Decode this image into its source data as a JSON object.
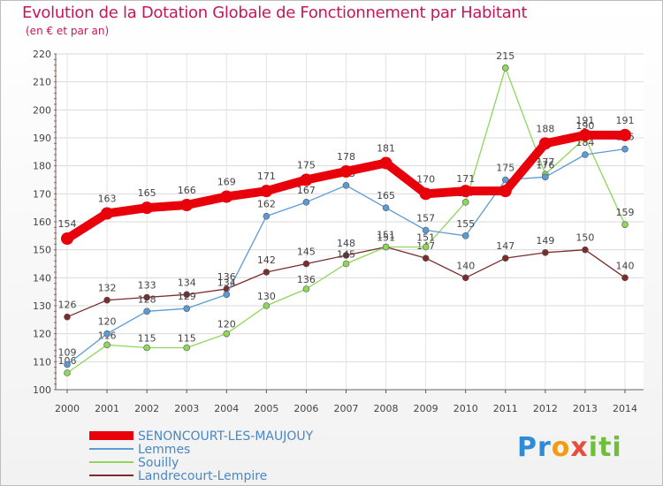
{
  "title": "Evolution de la Dotation Globale de Fonctionnement par Habitant",
  "subtitle": "(en € et par an)",
  "logo": {
    "parts": [
      "Pr",
      "o",
      "x",
      "iti"
    ]
  },
  "chart_data": {
    "type": "line",
    "x": [
      2000,
      2001,
      2002,
      2003,
      2004,
      2005,
      2006,
      2007,
      2008,
      2009,
      2010,
      2011,
      2012,
      2013,
      2014
    ],
    "ylim": [
      100,
      220
    ],
    "yticks": [
      100,
      110,
      120,
      130,
      140,
      150,
      160,
      170,
      180,
      190,
      200,
      210,
      220
    ],
    "grid": true,
    "legend_position": "bottom-left",
    "series": [
      {
        "name": "SENONCOURT-LES-MAUJOUY",
        "color": "#e8000b",
        "values": [
          154,
          163,
          165,
          166,
          169,
          171,
          175,
          178,
          181,
          170,
          171,
          171,
          188,
          191,
          191
        ],
        "labels": [
          "154",
          "163",
          "165",
          "166",
          "169",
          "171",
          "175",
          "178",
          "181",
          "170",
          "171",
          "",
          "188",
          "191",
          "191"
        ]
      },
      {
        "name": "Lemmes",
        "color": "#5b9bd5",
        "values": [
          109,
          120,
          128,
          129,
          134,
          162,
          167,
          173,
          165,
          157,
          155,
          175,
          176,
          184,
          186
        ],
        "labels": [
          "109",
          "120",
          "128",
          "129",
          "134",
          "162",
          "167",
          "173",
          "165",
          "157",
          "155",
          "175",
          "176",
          "184",
          "186"
        ]
      },
      {
        "name": "Souilly",
        "color": "#8fd65a",
        "values": [
          106,
          116,
          115,
          115,
          120,
          130,
          136,
          145,
          151,
          151,
          167,
          215,
          177,
          190,
          159
        ],
        "labels": [
          "106",
          "116",
          "115",
          "115",
          "120",
          "130",
          "136",
          "145",
          "151",
          "151",
          "167",
          "215",
          "177",
          "190",
          "159"
        ]
      },
      {
        "name": "Landrecourt-Lempire",
        "color": "#7b2c2c",
        "values": [
          126,
          132,
          133,
          134,
          136,
          142,
          145,
          148,
          151,
          147,
          140,
          147,
          149,
          150,
          140
        ],
        "labels": [
          "126",
          "132",
          "133",
          "134",
          "136",
          "142",
          "145",
          "148",
          "151",
          "147",
          "140",
          "147",
          "149",
          "150",
          "140"
        ]
      }
    ]
  }
}
